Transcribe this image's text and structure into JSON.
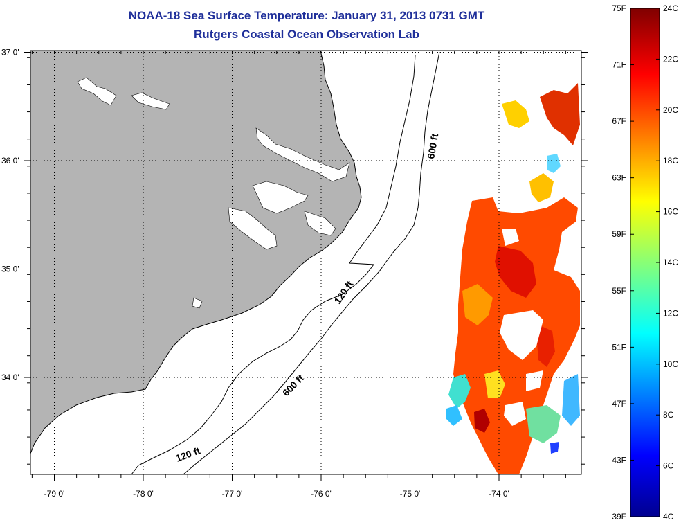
{
  "title": {
    "line1": "NOAA-18 Sea Surface Temperature:  January 31, 2013 0731 GMT",
    "line2": "Rutgers Coastal Ocean Observation Lab"
  },
  "colors": {
    "land": "#b4b4b4",
    "title": "#1f2f9a"
  },
  "map": {
    "lat_ticks": [
      {
        "value": 37,
        "label": "37 0'"
      },
      {
        "value": 36,
        "label": "36 0'"
      },
      {
        "value": 35,
        "label": "35 0'"
      },
      {
        "value": 34,
        "label": "34 0'"
      }
    ],
    "lon_ticks": [
      {
        "value": -79,
        "label": "-79 0'"
      },
      {
        "value": -78,
        "label": "-78 0'"
      },
      {
        "value": -77,
        "label": "-77 0'"
      },
      {
        "value": -76,
        "label": "-76 0'"
      },
      {
        "value": -75,
        "label": "-75 0'"
      },
      {
        "value": -74,
        "label": "-74 0'"
      }
    ],
    "contour_labels": [
      "600 ft",
      "120 ft",
      "600 ft",
      "120 ft"
    ]
  },
  "colorbar": {
    "fahrenheit": [
      "75F",
      "71F",
      "67F",
      "63F",
      "59F",
      "55F",
      "51F",
      "47F",
      "43F",
      "39F"
    ],
    "celsius": [
      "24C",
      "22C",
      "20C",
      "18C",
      "16C",
      "14C",
      "12C",
      "10C",
      "8C",
      "6C",
      "4C"
    ]
  }
}
